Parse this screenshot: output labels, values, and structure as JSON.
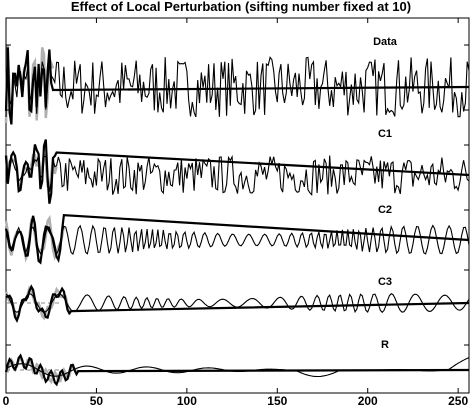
{
  "chart_data": {
    "type": "line",
    "title": "Effect of Local Perturbation (sifting number fixed at 10)",
    "xlabel": "",
    "ylabel": "",
    "xlim": [
      0,
      256
    ],
    "x_ticks": [
      0,
      50,
      100,
      150,
      200,
      250
    ],
    "x_tick_labels": [
      "0",
      "50",
      "100",
      "150",
      "200",
      "250"
    ],
    "grid": false,
    "panels": [
      {
        "label": "Data",
        "series": [
          {
            "style": "thin black",
            "description_values": "white-noise signal, amplitude about ±1, t = 0..256"
          },
          {
            "style": "thick black",
            "description_values": "perturbed segment t = 0..25, then flat at 0"
          },
          {
            "style": "thick gray",
            "description_values": "unperturbed segment t = 0..25"
          }
        ],
        "baseline": 0
      },
      {
        "label": "C1",
        "series": [
          {
            "style": "thin black",
            "description_values": "highest-frequency IMF, amplitude about ±0.8"
          },
          {
            "style": "thick black",
            "description_values": "perturbed IMF, t = 0..28, then 0"
          },
          {
            "style": "thick gray",
            "description_values": "unperturbed IMF, t = 0..28"
          }
        ],
        "baseline": 0
      },
      {
        "label": "C2",
        "series": [
          {
            "style": "thin black",
            "description_values": "second IMF, period about 8, amplitude about ±0.6"
          },
          {
            "style": "thick black",
            "description_values": "perturbed IMF, t = 0..30"
          },
          {
            "style": "thick gray",
            "description_values": "unperturbed IMF, t = 0..30"
          }
        ],
        "baseline": 0
      },
      {
        "label": "C3",
        "series": [
          {
            "style": "thin black",
            "description_values": "third IMF, period about 16, amplitude about ±0.4"
          },
          {
            "style": "thick black",
            "description_values": "perturbed IMF, t = 0..35"
          },
          {
            "style": "thick gray",
            "description_values": "unperturbed IMF, t = 0..35"
          }
        ],
        "baseline": 0
      },
      {
        "label": "R",
        "series": [
          {
            "style": "thin black",
            "description_values": "residual, slow oscillation, amplitude about ±0.4"
          },
          {
            "style": "thick black",
            "description_values": "perturbed residual, t = 0..40"
          },
          {
            "style": "thick gray",
            "description_values": "unperturbed residual, t = 0..40"
          }
        ],
        "baseline": 0
      }
    ]
  },
  "colors": {
    "background": "#ffffff",
    "line": "#000000",
    "gray": "#b0b0b0",
    "dash": "#888888"
  }
}
